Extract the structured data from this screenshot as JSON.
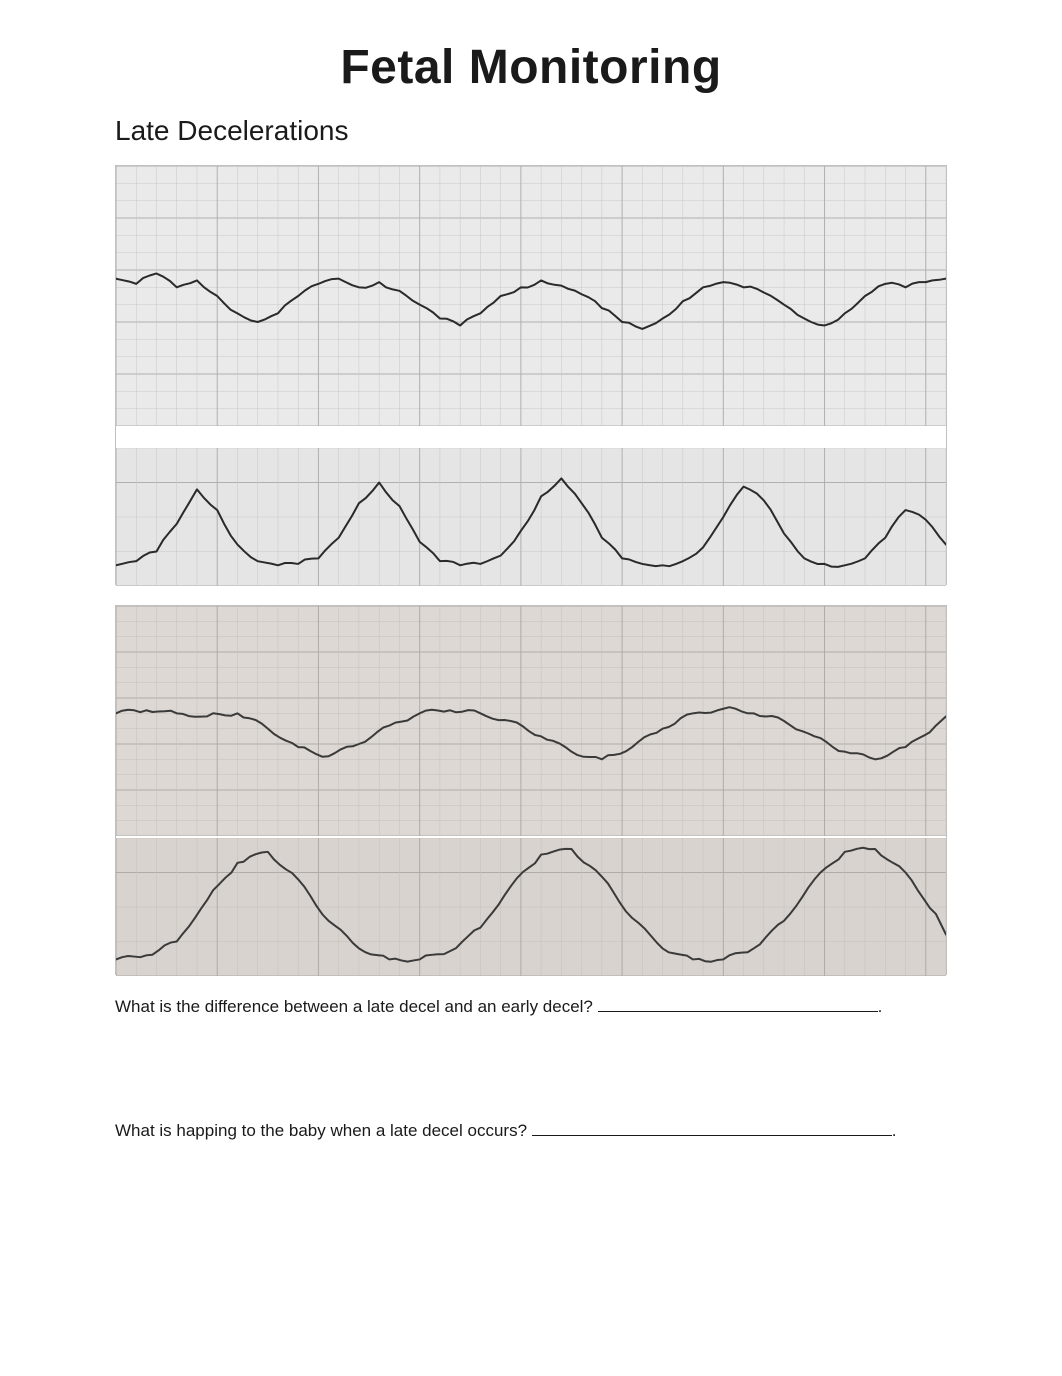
{
  "page": {
    "title": "Fetal Monitoring",
    "section_heading": "Late Decelerations"
  },
  "strip1": {
    "fhr": {
      "background_color": "#eaeaea",
      "grid_color": "#c8c8c8",
      "grid_major_color": "#b0b0b0",
      "trace_color": "#2a2a2a",
      "trace_width": 2,
      "ylim": [
        60,
        210
      ],
      "grid_y_step": 10,
      "grid_x_minor": 20,
      "grid_x_major": 100,
      "baseline": 140,
      "trace_points": [
        [
          0,
          145
        ],
        [
          20,
          142
        ],
        [
          40,
          148
        ],
        [
          60,
          140
        ],
        [
          80,
          144
        ],
        [
          100,
          135
        ],
        [
          120,
          125
        ],
        [
          140,
          120
        ],
        [
          160,
          125
        ],
        [
          180,
          135
        ],
        [
          200,
          142
        ],
        [
          220,
          145
        ],
        [
          240,
          140
        ],
        [
          260,
          143
        ],
        [
          280,
          138
        ],
        [
          300,
          130
        ],
        [
          320,
          122
        ],
        [
          340,
          118
        ],
        [
          360,
          125
        ],
        [
          380,
          135
        ],
        [
          400,
          140
        ],
        [
          420,
          144
        ],
        [
          440,
          141
        ],
        [
          460,
          136
        ],
        [
          480,
          128
        ],
        [
          500,
          120
        ],
        [
          520,
          116
        ],
        [
          540,
          122
        ],
        [
          560,
          132
        ],
        [
          580,
          140
        ],
        [
          600,
          143
        ],
        [
          620,
          140
        ],
        [
          640,
          137
        ],
        [
          660,
          130
        ],
        [
          680,
          122
        ],
        [
          700,
          118
        ],
        [
          720,
          125
        ],
        [
          740,
          135
        ],
        [
          760,
          142
        ],
        [
          780,
          140
        ],
        [
          800,
          143
        ],
        [
          820,
          145
        ]
      ]
    },
    "toco": {
      "background_color": "#e5e5e5",
      "grid_color": "#c8c8c8",
      "grid_major_color": "#b0b0b0",
      "trace_color": "#2a2a2a",
      "trace_width": 2,
      "ylim": [
        0,
        100
      ],
      "grid_y_step": 25,
      "grid_x_minor": 20,
      "grid_x_major": 100,
      "trace_points": [
        [
          0,
          15
        ],
        [
          20,
          18
        ],
        [
          40,
          25
        ],
        [
          60,
          45
        ],
        [
          80,
          70
        ],
        [
          100,
          55
        ],
        [
          120,
          30
        ],
        [
          140,
          18
        ],
        [
          160,
          15
        ],
        [
          180,
          16
        ],
        [
          200,
          20
        ],
        [
          220,
          35
        ],
        [
          240,
          60
        ],
        [
          260,
          75
        ],
        [
          280,
          58
        ],
        [
          300,
          32
        ],
        [
          320,
          18
        ],
        [
          340,
          15
        ],
        [
          360,
          16
        ],
        [
          380,
          22
        ],
        [
          400,
          40
        ],
        [
          420,
          65
        ],
        [
          440,
          78
        ],
        [
          460,
          60
        ],
        [
          480,
          35
        ],
        [
          500,
          20
        ],
        [
          520,
          16
        ],
        [
          540,
          15
        ],
        [
          560,
          18
        ],
        [
          580,
          28
        ],
        [
          600,
          50
        ],
        [
          620,
          72
        ],
        [
          640,
          62
        ],
        [
          660,
          38
        ],
        [
          680,
          20
        ],
        [
          700,
          16
        ],
        [
          720,
          15
        ],
        [
          740,
          20
        ],
        [
          760,
          35
        ],
        [
          780,
          55
        ],
        [
          800,
          48
        ],
        [
          820,
          30
        ]
      ]
    }
  },
  "strip2": {
    "fhr": {
      "background_color": "#ddd8d4",
      "grid_color": "#c5c0bc",
      "grid_major_color": "#b0aba7",
      "trace_color": "#3a3a3a",
      "trace_width": 2,
      "ylim": [
        60,
        210
      ],
      "grid_y_step": 10,
      "grid_x_minor": 20,
      "grid_x_major": 100,
      "baseline": 140,
      "trace_points": [
        [
          0,
          140
        ],
        [
          30,
          142
        ],
        [
          60,
          140
        ],
        [
          90,
          138
        ],
        [
          120,
          140
        ],
        [
          150,
          130
        ],
        [
          180,
          118
        ],
        [
          210,
          112
        ],
        [
          240,
          120
        ],
        [
          270,
          132
        ],
        [
          300,
          140
        ],
        [
          330,
          142
        ],
        [
          360,
          140
        ],
        [
          390,
          135
        ],
        [
          420,
          125
        ],
        [
          450,
          115
        ],
        [
          480,
          110
        ],
        [
          510,
          118
        ],
        [
          540,
          130
        ],
        [
          570,
          140
        ],
        [
          600,
          143
        ],
        [
          630,
          140
        ],
        [
          660,
          135
        ],
        [
          690,
          125
        ],
        [
          720,
          115
        ],
        [
          750,
          110
        ],
        [
          780,
          118
        ],
        [
          810,
          132
        ],
        [
          820,
          138
        ]
      ]
    },
    "toco": {
      "background_color": "#d8d3cf",
      "grid_color": "#c5c0bc",
      "grid_major_color": "#b0aba7",
      "trace_color": "#3a3a3a",
      "trace_width": 2,
      "ylim": [
        0,
        100
      ],
      "grid_y_step": 25,
      "grid_x_minor": 20,
      "grid_x_major": 100,
      "trace_points": [
        [
          0,
          12
        ],
        [
          30,
          15
        ],
        [
          60,
          25
        ],
        [
          90,
          55
        ],
        [
          120,
          82
        ],
        [
          150,
          90
        ],
        [
          180,
          70
        ],
        [
          210,
          40
        ],
        [
          240,
          20
        ],
        [
          270,
          12
        ],
        [
          300,
          12
        ],
        [
          330,
          18
        ],
        [
          360,
          35
        ],
        [
          390,
          65
        ],
        [
          420,
          88
        ],
        [
          450,
          92
        ],
        [
          480,
          72
        ],
        [
          510,
          42
        ],
        [
          540,
          20
        ],
        [
          570,
          12
        ],
        [
          600,
          12
        ],
        [
          630,
          20
        ],
        [
          660,
          40
        ],
        [
          690,
          70
        ],
        [
          720,
          90
        ],
        [
          750,
          92
        ],
        [
          780,
          75
        ],
        [
          810,
          45
        ],
        [
          820,
          30
        ]
      ]
    }
  },
  "questions": {
    "q1_prefix": "What is the difference between a late decel and an early decel? ",
    "q1_blank_width": 280,
    "q1_suffix": ".",
    "q2_prefix": "What is happing to the baby when a late decel occurs? ",
    "q2_blank_width": 360,
    "q2_suffix": "."
  },
  "colors": {
    "page_background": "#ffffff",
    "text_color": "#1a1a1a"
  }
}
